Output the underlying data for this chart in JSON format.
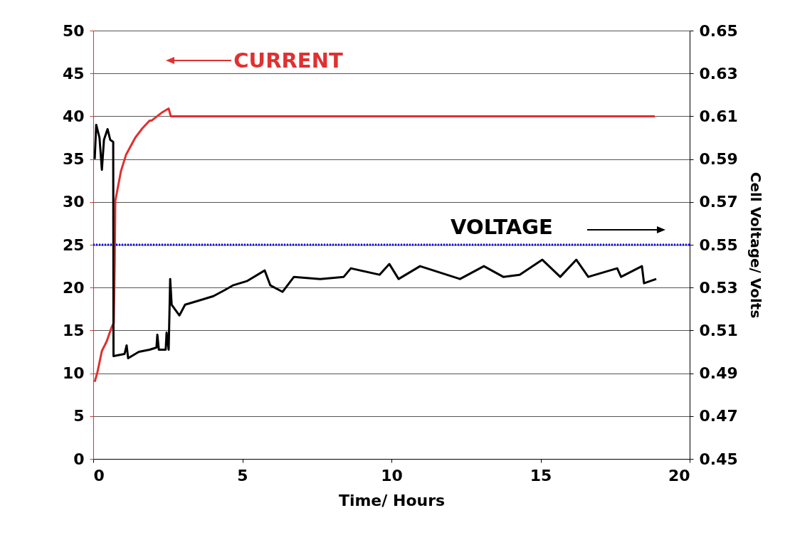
{
  "chart_data": {
    "type": "line",
    "xlabel": "Time/ Hours",
    "y2label": "Cell Voltage/ Volts",
    "xlim": [
      0,
      20
    ],
    "xticks": [
      0,
      5,
      10,
      15,
      20
    ],
    "ylim": [
      0,
      50
    ],
    "yticks": [
      0,
      5,
      10,
      15,
      20,
      25,
      30,
      35,
      40,
      45,
      50
    ],
    "y2lim": [
      0.45,
      0.65
    ],
    "y2ticks": [
      0.45,
      0.47,
      0.49,
      0.51,
      0.53,
      0.55,
      0.57,
      0.59,
      0.61,
      0.63,
      0.65
    ],
    "grid": "y",
    "line_style": "solid",
    "ref_lines": [
      {
        "axis": "y",
        "value": 25,
        "color": "#0000ff",
        "line_style": "dotted"
      }
    ],
    "series": [
      {
        "name": "CURRENT",
        "color": "#e03030",
        "x": [
          0.05,
          0.14,
          0.29,
          0.45,
          0.62,
          0.69,
          0.72,
          0.74,
          0.81,
          0.93,
          1.1,
          1.41,
          1.65,
          1.89,
          1.96,
          2.29,
          2.53,
          2.6,
          18.83
        ],
        "values": [
          9.0,
          10.1,
          12.6,
          13.7,
          15.4,
          15.9,
          22.6,
          30.1,
          31.4,
          33.6,
          35.5,
          37.5,
          38.6,
          39.5,
          39.5,
          40.4,
          40.9,
          40.0,
          40.0
        ]
      },
      {
        "name": "VOLTAGE",
        "color": "#000000",
        "axis": "y2",
        "x": [
          0.05,
          0.1,
          0.21,
          0.29,
          0.36,
          0.48,
          0.57,
          0.67,
          0.68,
          1.05,
          1.12,
          1.17,
          1.53,
          1.89,
          2.12,
          2.15,
          2.2,
          2.43,
          2.46,
          2.53,
          2.58,
          2.63,
          2.89,
          3.08,
          3.56,
          4.03,
          4.43,
          4.68,
          5.15,
          5.75,
          5.94,
          6.35,
          6.73,
          7.61,
          8.4,
          8.64,
          9.6,
          9.93,
          10.24,
          10.96,
          12.3,
          13.1,
          13.75,
          14.3,
          15.06,
          15.66,
          16.2,
          16.6,
          17.57,
          17.7,
          18.4,
          18.47,
          18.88
        ],
        "values": [
          0.59,
          0.606,
          0.6,
          0.585,
          0.599,
          0.604,
          0.599,
          0.598,
          0.498,
          0.499,
          0.503,
          0.497,
          0.5,
          0.501,
          0.502,
          0.508,
          0.501,
          0.501,
          0.509,
          0.501,
          0.534,
          0.522,
          0.517,
          0.522,
          0.524,
          0.526,
          0.529,
          0.531,
          0.533,
          0.538,
          0.531,
          0.528,
          0.535,
          0.534,
          0.535,
          0.539,
          0.536,
          0.541,
          0.534,
          0.54,
          0.534,
          0.54,
          0.535,
          0.536,
          0.543,
          0.535,
          0.543,
          0.535,
          0.539,
          0.535,
          0.54,
          0.532,
          0.534
        ]
      }
    ]
  }
}
